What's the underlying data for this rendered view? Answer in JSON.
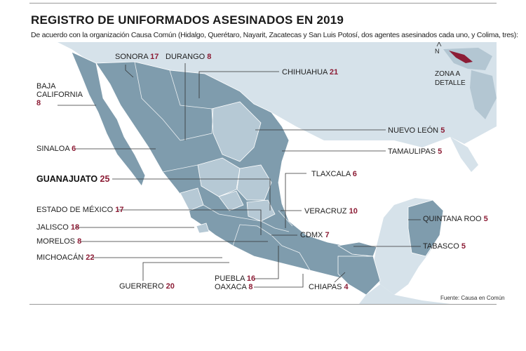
{
  "title": "REGISTRO DE UNIFORMADOS ASESINADOS EN 2019",
  "subtitle": "De acuerdo con la organización Causa Común (Hidalgo, Querétaro, Nayarit, Zacatecas y San Luis Potosí, dos agentes asesinados cada uno, y Colima, tres):",
  "source": "Fuente: Causa en Común",
  "inset": {
    "north": "N",
    "label1": "ZONA A",
    "label2": "DETALLE"
  },
  "colors": {
    "sea": "#ffffff",
    "land_light": "#d6e2ea",
    "land_mid": "#b3c6d2",
    "states_dark": "#7f9cad",
    "states_light": "#b6c9d5",
    "accent": "#8c1c35"
  },
  "states": [
    {
      "id": "sonora",
      "name": "SONORA",
      "count": "17"
    },
    {
      "id": "durango",
      "name": "DURANGO",
      "count": "8"
    },
    {
      "id": "chihuahua",
      "name": "CHIHUAHUA",
      "count": "21"
    },
    {
      "id": "baja-california",
      "name1": "BAJA",
      "name2": "CALIFORNIA",
      "count": "8"
    },
    {
      "id": "sinaloa",
      "name": "SINALOA",
      "count": "6"
    },
    {
      "id": "nuevo-leon",
      "name": "NUEVO LEÓN",
      "count": "5"
    },
    {
      "id": "tamaulipas",
      "name": "TAMAULIPAS",
      "count": "5"
    },
    {
      "id": "guanajuato",
      "name": "GUANAJUATO",
      "count": "25"
    },
    {
      "id": "tlaxcala",
      "name": "TLAXCALA",
      "count": "6"
    },
    {
      "id": "estado-de-mexico",
      "name": "ESTADO DE MÉXICO",
      "count": "17"
    },
    {
      "id": "veracruz",
      "name": "VERACRUZ",
      "count": "10"
    },
    {
      "id": "jalisco",
      "name": "JALISCO",
      "count": "18"
    },
    {
      "id": "quintana-roo",
      "name": "QUINTANA ROO",
      "count": "5"
    },
    {
      "id": "cdmx",
      "name": "CDMX",
      "count": "7"
    },
    {
      "id": "morelos",
      "name": "MORELOS",
      "count": "8"
    },
    {
      "id": "tabasco",
      "name": "TABASCO",
      "count": "5"
    },
    {
      "id": "michoacan",
      "name": "MICHOACÁN",
      "count": "22"
    },
    {
      "id": "puebla",
      "name": "PUEBLA",
      "count": "16"
    },
    {
      "id": "oaxaca",
      "name": "OAXACA",
      "count": "8"
    },
    {
      "id": "guerrero",
      "name": "GUERRERO",
      "count": "20"
    },
    {
      "id": "chiapas",
      "name": "CHIAPAS",
      "count": "4"
    }
  ]
}
